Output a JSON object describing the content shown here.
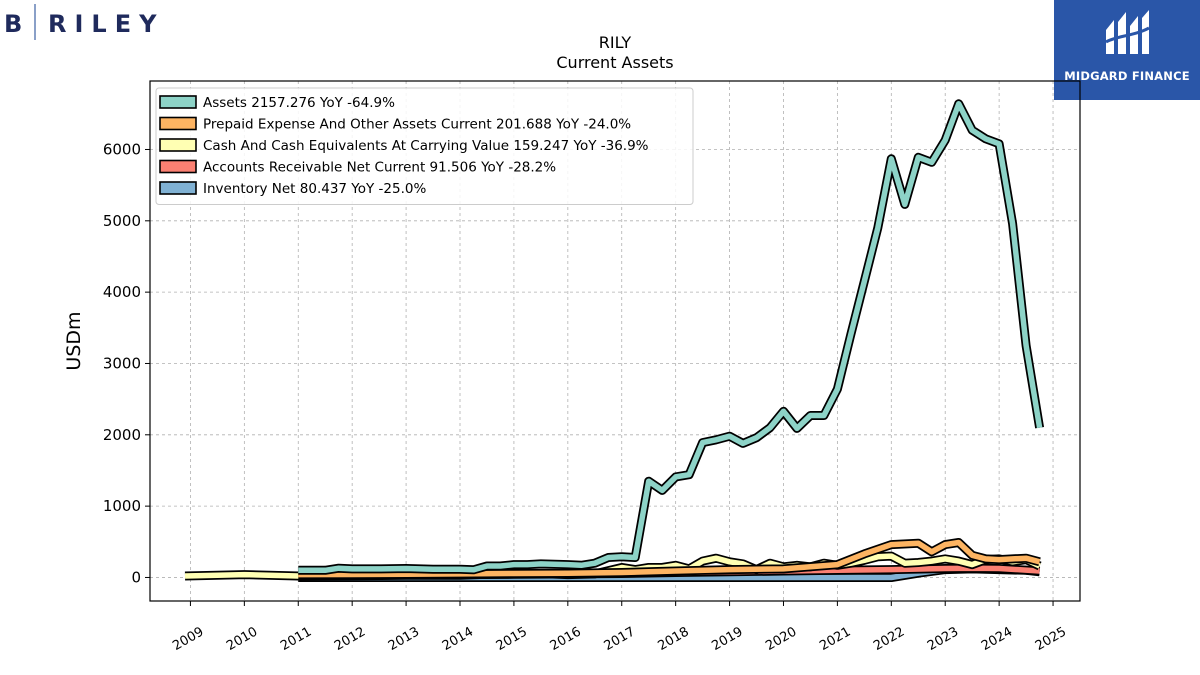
{
  "branding": {
    "left_logo_text": "B RILEY",
    "right_logo_text": "MIDGARD FINANCE",
    "left_logo_color": "#1f2a5c",
    "right_logo_bg": "#2a56a8"
  },
  "chart_data": {
    "type": "line",
    "title": "RILY",
    "subtitle": "Current  Assets",
    "ylabel": "USDm",
    "xlabel": "",
    "xlim": [
      2008.25,
      2025.5
    ],
    "ylim": [
      -330,
      6960
    ],
    "x_ticks": [
      "2009",
      "2010",
      "2011",
      "2012",
      "2013",
      "2014",
      "2015",
      "2016",
      "2017",
      "2018",
      "2019",
      "2020",
      "2021",
      "2022",
      "2023",
      "2024",
      "2025"
    ],
    "y_ticks": [
      "0",
      "1000",
      "2000",
      "3000",
      "4000",
      "5000",
      "6000"
    ],
    "grid": true,
    "legend_position": "top-left",
    "series": [
      {
        "name": "Assets  2157.276 YoY -64.9%",
        "color": "#8dd3c7",
        "points": [
          [
            2011.0,
            100
          ],
          [
            2011.5,
            100
          ],
          [
            2011.75,
            130
          ],
          [
            2012.0,
            120
          ],
          [
            2012.5,
            120
          ],
          [
            2013.0,
            125
          ],
          [
            2013.5,
            115
          ],
          [
            2014.0,
            115
          ],
          [
            2014.25,
            108
          ],
          [
            2014.5,
            160
          ],
          [
            2014.75,
            160
          ],
          [
            2015.0,
            180
          ],
          [
            2015.25,
            180
          ],
          [
            2015.5,
            190
          ],
          [
            2016.0,
            180
          ],
          [
            2016.25,
            170
          ],
          [
            2016.5,
            200
          ],
          [
            2016.75,
            280
          ],
          [
            2017.0,
            290
          ],
          [
            2017.25,
            280
          ],
          [
            2017.5,
            1350
          ],
          [
            2017.75,
            1220
          ],
          [
            2018.0,
            1410
          ],
          [
            2018.25,
            1440
          ],
          [
            2018.5,
            1890
          ],
          [
            2018.75,
            1930
          ],
          [
            2019.0,
            1980
          ],
          [
            2019.25,
            1880
          ],
          [
            2019.5,
            1960
          ],
          [
            2019.75,
            2100
          ],
          [
            2020.0,
            2330
          ],
          [
            2020.25,
            2090
          ],
          [
            2020.5,
            2270
          ],
          [
            2020.75,
            2270
          ],
          [
            2021.0,
            2640
          ],
          [
            2021.25,
            3410
          ],
          [
            2021.5,
            4150
          ],
          [
            2021.75,
            4900
          ],
          [
            2022.0,
            5870
          ],
          [
            2022.25,
            5230
          ],
          [
            2022.5,
            5890
          ],
          [
            2022.75,
            5820
          ],
          [
            2023.0,
            6130
          ],
          [
            2023.25,
            6640
          ],
          [
            2023.5,
            6270
          ],
          [
            2023.75,
            6150
          ],
          [
            2024.0,
            6080
          ],
          [
            2024.25,
            4960
          ],
          [
            2024.5,
            3250
          ],
          [
            2024.75,
            2100
          ]
        ]
      },
      {
        "name": "Prepaid Expense And Other Assets Current  201.688 YoY -24.0%",
        "color": "#fdb462",
        "points": [
          [
            2011.0,
            40
          ],
          [
            2012.0,
            42
          ],
          [
            2013.0,
            45
          ],
          [
            2014.0,
            50
          ],
          [
            2015.0,
            55
          ],
          [
            2016.0,
            60
          ],
          [
            2017.0,
            70
          ],
          [
            2018.0,
            90
          ],
          [
            2019.0,
            110
          ],
          [
            2020.0,
            120
          ],
          [
            2021.0,
            180
          ],
          [
            2021.5,
            330
          ],
          [
            2022.0,
            460
          ],
          [
            2022.5,
            480
          ],
          [
            2022.75,
            360
          ],
          [
            2023.0,
            460
          ],
          [
            2023.25,
            490
          ],
          [
            2023.5,
            310
          ],
          [
            2023.75,
            260
          ],
          [
            2024.0,
            250
          ],
          [
            2024.5,
            270
          ],
          [
            2024.75,
            220
          ]
        ]
      },
      {
        "name": "Cash And Cash Equivalents At Carrying Value  159.247 YoY -36.9%",
        "color": "#ffffb3",
        "points": [
          [
            2008.9,
            20
          ],
          [
            2010.0,
            40
          ],
          [
            2011.0,
            20
          ],
          [
            2012.0,
            25
          ],
          [
            2013.0,
            30
          ],
          [
            2014.0,
            30
          ],
          [
            2015.0,
            60
          ],
          [
            2015.5,
            55
          ],
          [
            2016.0,
            40
          ],
          [
            2016.5,
            50
          ],
          [
            2017.0,
            140
          ],
          [
            2017.25,
            110
          ],
          [
            2017.5,
            140
          ],
          [
            2017.75,
            140
          ],
          [
            2018.0,
            170
          ],
          [
            2018.25,
            120
          ],
          [
            2018.5,
            230
          ],
          [
            2018.75,
            270
          ],
          [
            2019.0,
            220
          ],
          [
            2019.25,
            190
          ],
          [
            2019.5,
            110
          ],
          [
            2019.75,
            200
          ],
          [
            2020.0,
            150
          ],
          [
            2020.25,
            170
          ],
          [
            2020.5,
            150
          ],
          [
            2020.75,
            200
          ],
          [
            2021.0,
            170
          ],
          [
            2021.25,
            200
          ],
          [
            2021.5,
            240
          ],
          [
            2021.75,
            290
          ],
          [
            2022.0,
            300
          ],
          [
            2022.25,
            200
          ],
          [
            2022.5,
            210
          ],
          [
            2022.75,
            230
          ],
          [
            2023.0,
            260
          ],
          [
            2023.25,
            230
          ],
          [
            2023.5,
            180
          ],
          [
            2023.75,
            250
          ],
          [
            2024.0,
            260
          ],
          [
            2024.25,
            220
          ],
          [
            2024.5,
            250
          ],
          [
            2024.75,
            160
          ]
        ]
      },
      {
        "name": "Accounts Receivable Net Current  91.506 YoY -28.2%",
        "color": "#fb8072",
        "points": [
          [
            2011.0,
            30
          ],
          [
            2012.0,
            35
          ],
          [
            2013.0,
            40
          ],
          [
            2014.0,
            40
          ],
          [
            2015.0,
            45
          ],
          [
            2016.0,
            50
          ],
          [
            2017.0,
            55
          ],
          [
            2018.0,
            70
          ],
          [
            2019.0,
            80
          ],
          [
            2020.0,
            90
          ],
          [
            2021.0,
            100
          ],
          [
            2022.0,
            110
          ],
          [
            2023.0,
            125
          ],
          [
            2023.5,
            130
          ],
          [
            2024.0,
            125
          ],
          [
            2024.75,
            90
          ]
        ]
      },
      {
        "name": "Inventory Net  80.437 YoY -25.0%",
        "color": "#80b1d3",
        "points": [
          [
            2011.0,
            0
          ],
          [
            2012.0,
            0
          ],
          [
            2013.0,
            0
          ],
          [
            2014.0,
            0
          ],
          [
            2015.0,
            0
          ],
          [
            2016.0,
            0
          ],
          [
            2017.0,
            0
          ],
          [
            2018.0,
            0
          ],
          [
            2019.0,
            0
          ],
          [
            2020.0,
            0
          ],
          [
            2021.0,
            0
          ],
          [
            2021.5,
            0
          ],
          [
            2022.0,
            0
          ],
          [
            2022.5,
            60
          ],
          [
            2023.0,
            110
          ],
          [
            2023.5,
            120
          ],
          [
            2024.0,
            110
          ],
          [
            2024.5,
            100
          ],
          [
            2024.75,
            80
          ]
        ]
      }
    ]
  }
}
